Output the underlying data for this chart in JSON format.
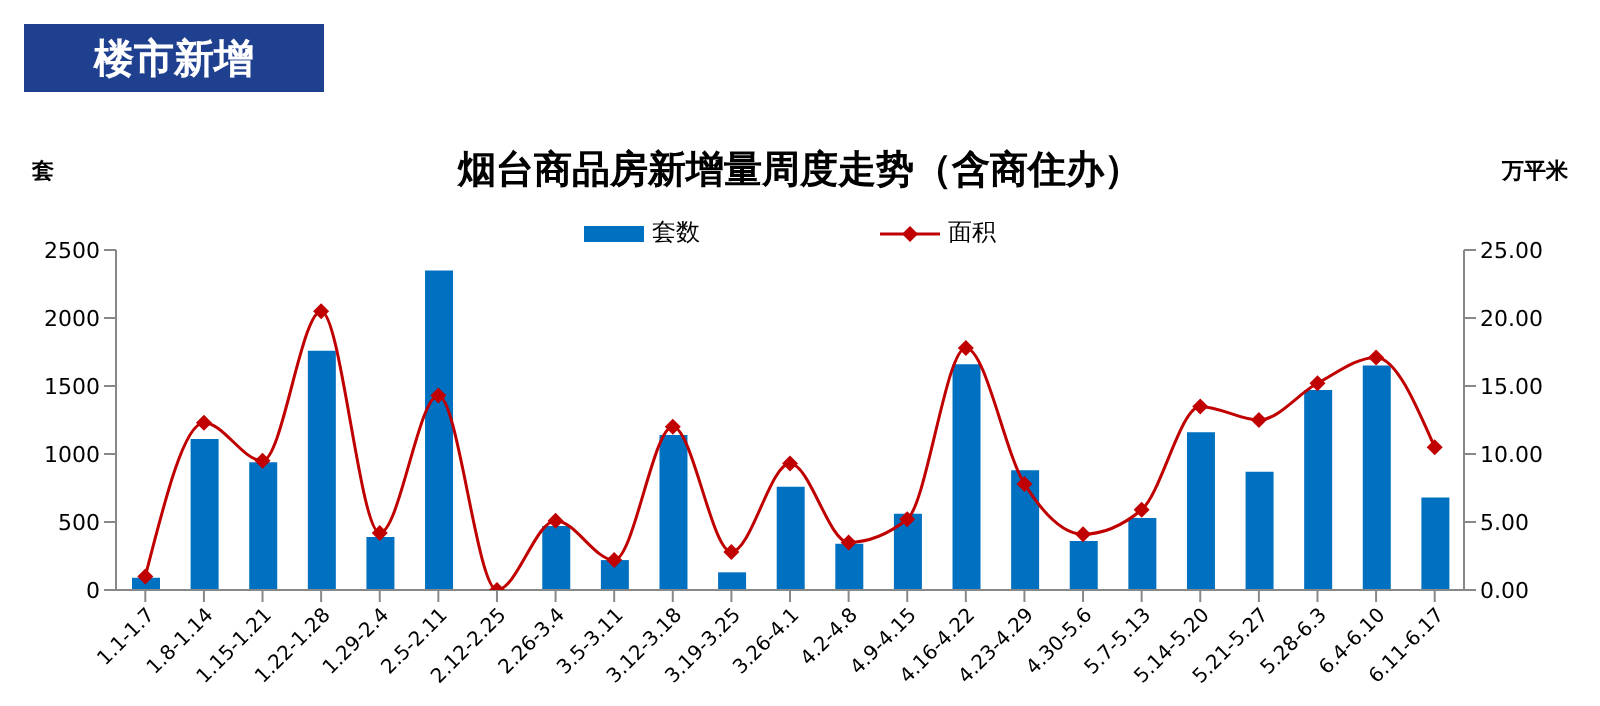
{
  "chart_data": {
    "type": "bar",
    "title": "烟台商品房新增量周度走势（含商住办）",
    "annotations": [
      "楼市新增"
    ],
    "ylabel": "套",
    "y2label": "万平米",
    "categories": [
      "1.1-1.7",
      "1.8-1.14",
      "1.15-1.21",
      "1.22-1.28",
      "1.29-2.4",
      "2.5-2.11",
      "2.12-2.25",
      "2.26-3.4",
      "3.5-3.11",
      "3.12-3.18",
      "3.19-3.25",
      "3.26-4.1",
      "4.2-4.8",
      "4.9-4.15",
      "4.16-4.22",
      "4.23-4.29",
      "4.30-5.6",
      "5.7-5.13",
      "5.14-5.20",
      "5.21-5.27",
      "5.28-6.3",
      "6.4-6.10",
      "6.11-6.17"
    ],
    "series": [
      {
        "name": "套数",
        "color": "#0070c0",
        "values": [
          90,
          1110,
          940,
          1760,
          390,
          2350,
          0,
          470,
          220,
          1140,
          130,
          760,
          340,
          560,
          1660,
          880,
          360,
          530,
          1160,
          870,
          1470,
          1650,
          680
        ]
      },
      {
        "name": "面积",
        "type": "line",
        "axis": "y2",
        "color": "#c00000",
        "marker": "diamond",
        "values": [
          1.0,
          12.3,
          9.5,
          20.5,
          4.2,
          14.3,
          0,
          5.1,
          2.2,
          12.0,
          2.8,
          9.3,
          3.5,
          5.2,
          17.8,
          7.8,
          4.1,
          5.9,
          13.5,
          12.5,
          15.2,
          17.1,
          10.5
        ]
      }
    ],
    "ylim": [
      0,
      2500
    ],
    "yticks": [
      0,
      500,
      1000,
      1500,
      2000,
      2500
    ],
    "y2lim": [
      0,
      25
    ],
    "y2ticks": [
      {
        "value": 0,
        "label": "0.00"
      },
      {
        "value": 5,
        "label": "5.00"
      },
      {
        "value": 10,
        "label": "10.00"
      },
      {
        "value": 15,
        "label": "15.00"
      },
      {
        "value": 20,
        "label": "20.00"
      },
      {
        "value": 25,
        "label": "25.00"
      }
    ],
    "grid": false,
    "legend": "top"
  }
}
